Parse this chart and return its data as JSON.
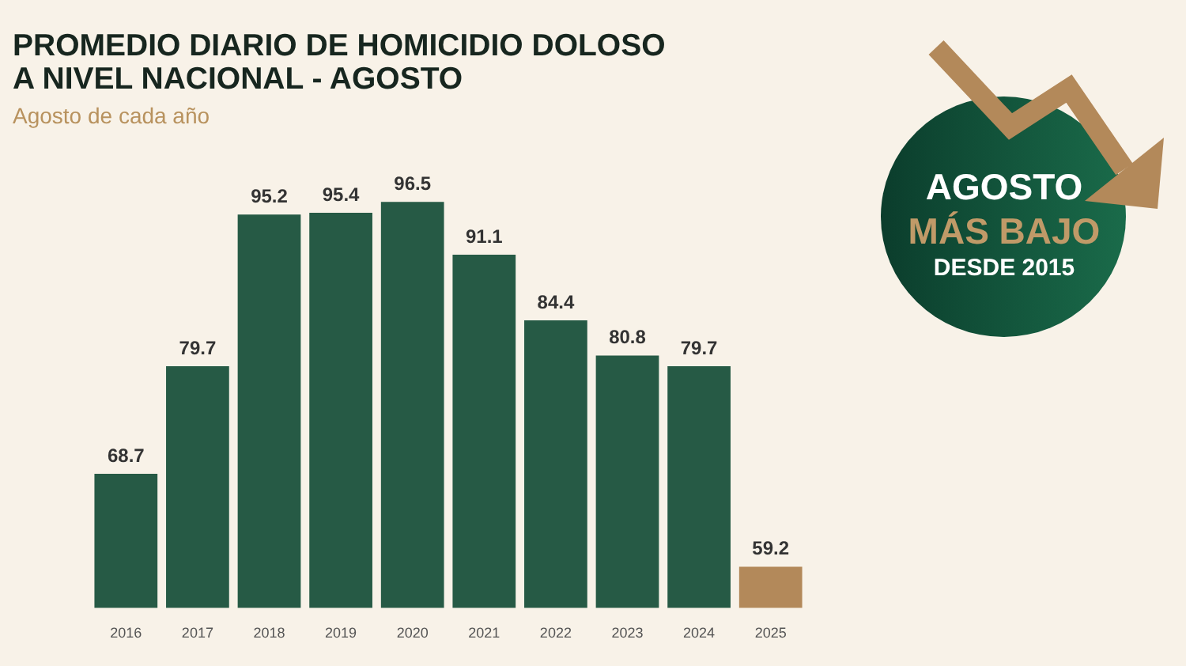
{
  "chart_data": {
    "type": "bar",
    "title": "PROMEDIO DIARIO DE HOMICIDIO DOLOSO A NIVEL NACIONAL - AGOSTO",
    "subtitle": "Agosto de cada año",
    "categories": [
      "2016",
      "2017",
      "2018",
      "2019",
      "2020",
      "2021",
      "2022",
      "2023",
      "2024",
      "2025"
    ],
    "values": [
      68.7,
      79.7,
      95.2,
      95.4,
      96.5,
      91.1,
      84.4,
      80.8,
      79.7,
      59.2
    ],
    "colors": [
      "#265a45",
      "#265a45",
      "#265a45",
      "#265a45",
      "#265a45",
      "#265a45",
      "#265a45",
      "#265a45",
      "#265a45",
      "#b3895a"
    ],
    "data_labels": true,
    "tick_labels": "x",
    "annotations": [
      "AGOSTO",
      "MÁS BAJO",
      "DESDE 2015"
    ]
  }
}
